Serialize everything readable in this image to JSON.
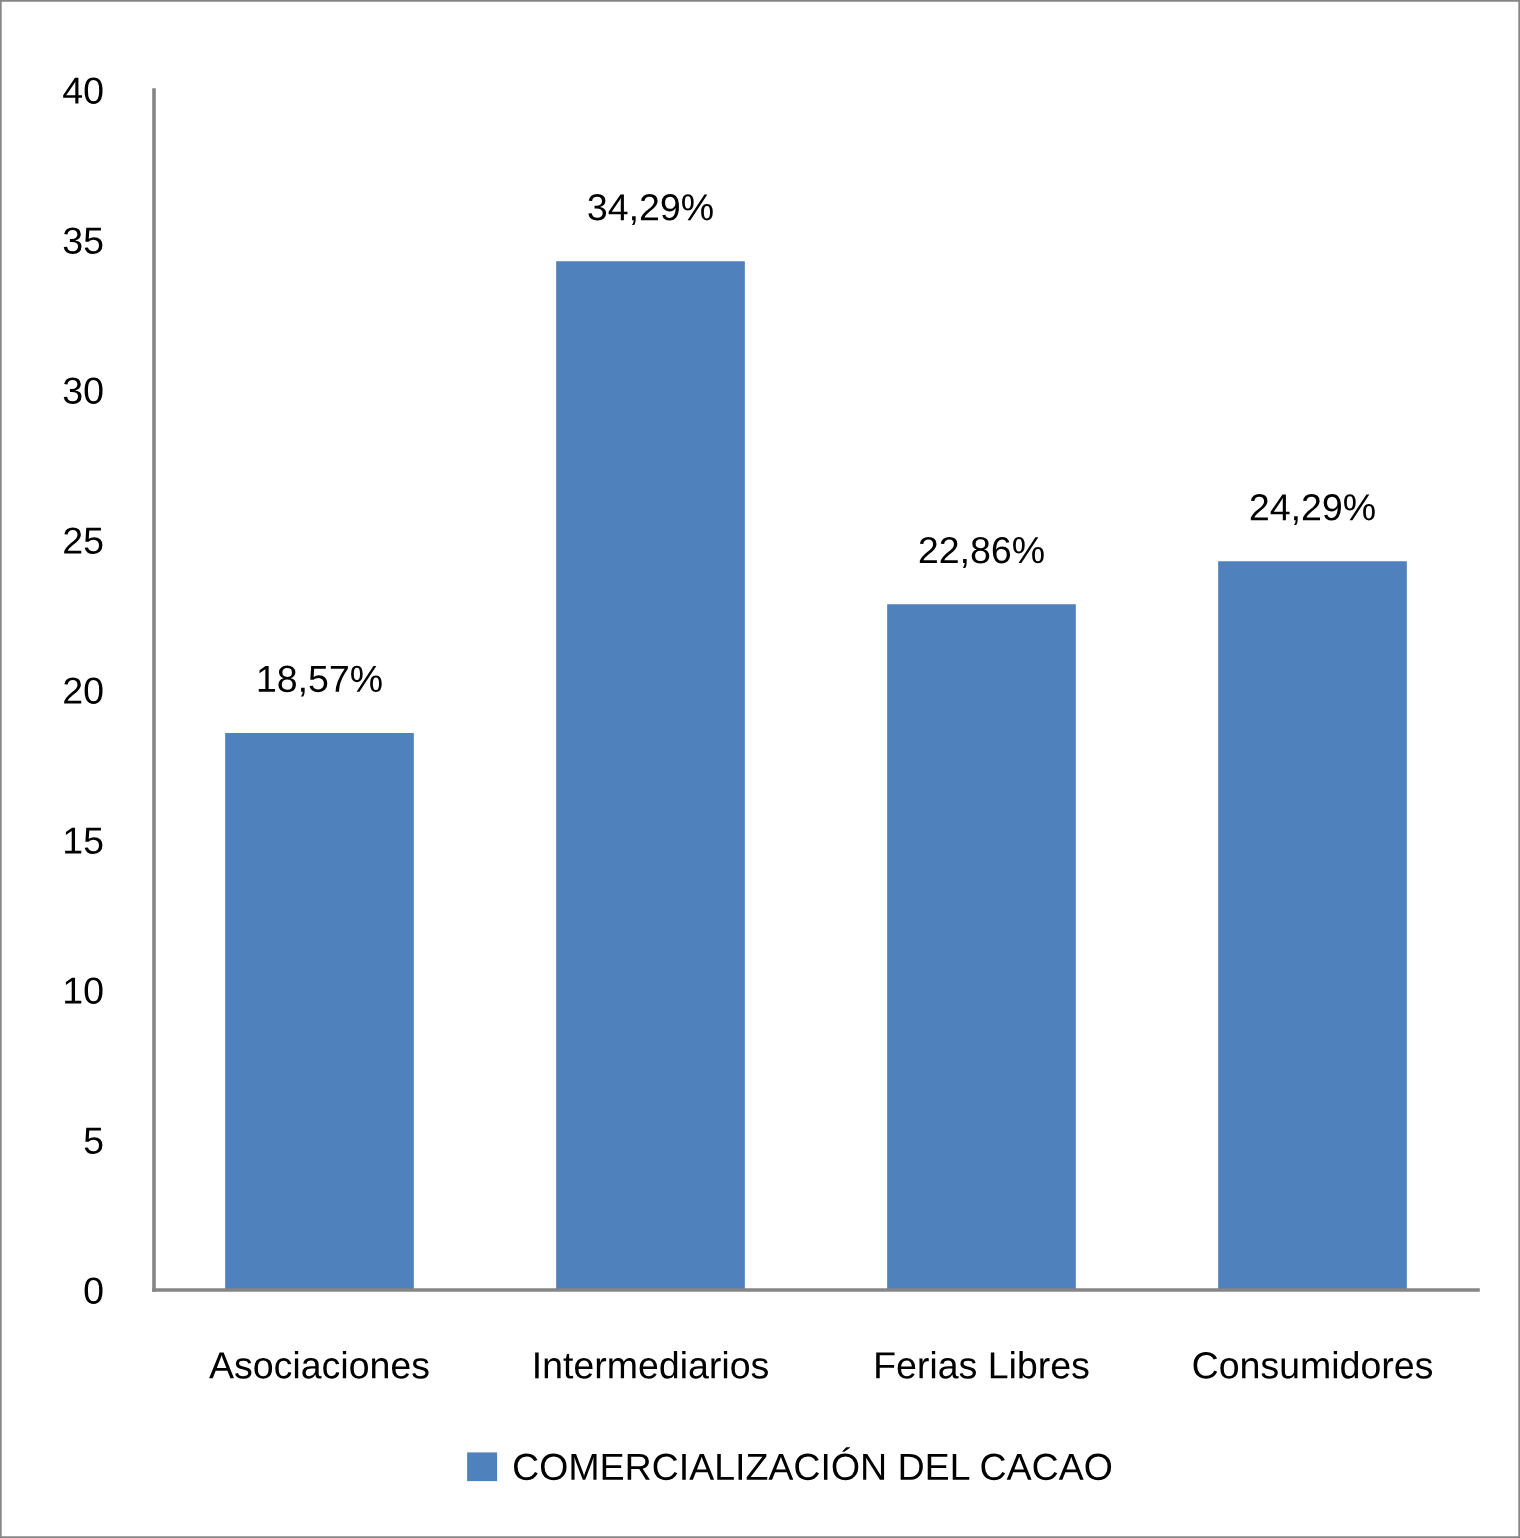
{
  "chart_data": {
    "type": "bar",
    "categories": [
      "Asociaciones",
      "Intermediarios",
      "Ferias Libres",
      "Consumidores"
    ],
    "series": [
      {
        "name": "COMERCIALIZACIÓN DEL CACAO",
        "color": "#4f81bd",
        "values": [
          18.57,
          34.29,
          22.86,
          24.29
        ],
        "value_labels": [
          "18,57%",
          "34,29%",
          "22,86%",
          "24,29%"
        ]
      }
    ],
    "ylim": [
      0,
      40
    ],
    "yticks": [
      0,
      5,
      10,
      15,
      20,
      25,
      30,
      35,
      40
    ],
    "grid": false,
    "legend": "bottom"
  }
}
